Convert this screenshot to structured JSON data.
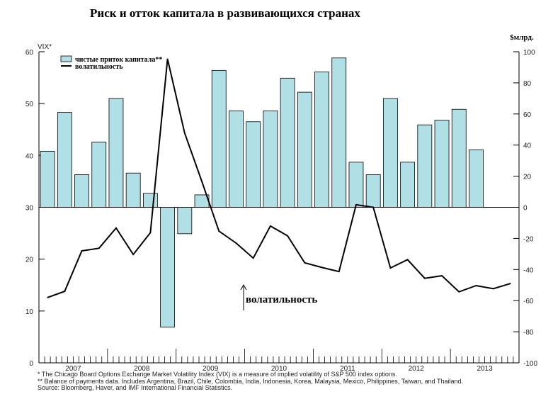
{
  "chart_data": {
    "type": "bar+line",
    "title": "Риск и отток капитала в развивающихся странах",
    "left_axis": {
      "label": "VIX*",
      "ylim": [
        0,
        60
      ],
      "ticks": [
        "0",
        "10",
        "20",
        "30",
        "40",
        "50",
        "60"
      ]
    },
    "right_axis": {
      "label": "$млрд.",
      "ylim": [
        -100,
        100
      ],
      "ticks": [
        "-100",
        "-80",
        "-60",
        "-40",
        "-20",
        "0",
        "20",
        "40",
        "60",
        "80",
        "100"
      ]
    },
    "x_tick_labels": [
      "2007",
      "2008",
      "2009",
      "2010",
      "2011",
      "2012",
      "2013"
    ],
    "legend": {
      "placement": "top-left",
      "bars": "чистые приток капитала**",
      "line": "волатильность"
    },
    "series": [
      {
        "name": "чистые приток капитала**",
        "type": "bar",
        "axis": "right",
        "values": [
          36,
          61,
          21,
          42,
          70,
          22,
          9,
          -77,
          -17,
          8,
          88,
          62,
          55,
          62,
          83,
          74,
          87,
          96,
          29,
          21,
          70,
          29,
          53,
          56,
          63,
          37
        ]
      },
      {
        "name": "волатильность",
        "type": "line",
        "axis": "left",
        "values": [
          12.6,
          13.8,
          21.6,
          22.1,
          26,
          20.9,
          25.1,
          58.6,
          44.3,
          35,
          25.4,
          23.1,
          20.2,
          26.4,
          24.5,
          19.3,
          18.4,
          17.6,
          30.5,
          30,
          18.3,
          19.9,
          16.3,
          16.8,
          13.7,
          14.9,
          14.3,
          15.3
        ]
      }
    ],
    "annotation": "волатильность",
    "footnotes": [
      "* The Chicago Board Options Exchange Market Volatility Index (VIX) is a measure of implied volatility of S&P 500 index options.",
      "** Balance of payments data. Includes Argentina, Brazil, Chile, Colombia, India, Indonesia, Korea, Malaysia, Mexico, Philippines, Taiwan, and Thailand.",
      "Source: Bloomberg, Haver, and IMF International Financial Statistics."
    ],
    "colors": {
      "bar": "#b0dfe5",
      "line": "#000000"
    }
  }
}
